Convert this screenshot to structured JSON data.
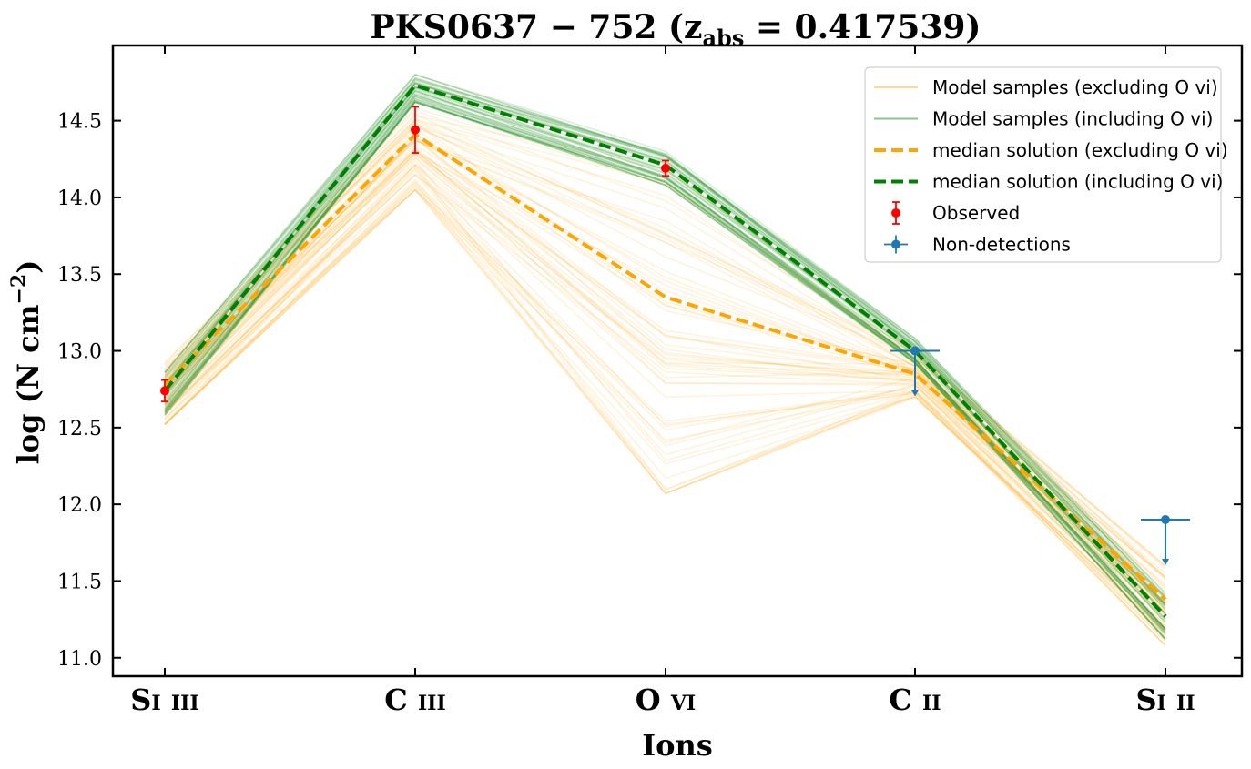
{
  "chart_data": {
    "type": "line",
    "title": "PKS0637 − 752 (z_abs = 0.417539)",
    "title_main": "PKS0637 − 752 (z",
    "title_sub": "abs",
    "title_tail": " = 0.417539)",
    "xlabel": "Ions",
    "ylabel": "log (N cm⁻²)",
    "ylabel_main": "log (N cm",
    "ylabel_sup": "−2",
    "ylabel_tail": ")",
    "categories": [
      "Si iii",
      "C iii",
      "O vi",
      "C ii",
      "Si ii"
    ],
    "ylim": [
      10.88,
      14.99
    ],
    "yticks": [
      11.0,
      11.5,
      12.0,
      12.5,
      13.0,
      13.5,
      14.0,
      14.5
    ],
    "ytick_labels": [
      "11.0",
      "11.5",
      "12.0",
      "12.5",
      "13.0",
      "13.5",
      "14.0",
      "14.5"
    ],
    "grid": false,
    "legend_placement": "top-right",
    "series": [
      {
        "name": "median solution (excluding O vi)",
        "color": "#ffa500",
        "style": "dashed",
        "values": [
          12.78,
          14.41,
          13.35,
          12.85,
          11.38
        ]
      },
      {
        "name": "median solution (including O vi)",
        "color": "#008000",
        "style": "dashed",
        "values": [
          12.74,
          14.73,
          14.21,
          13.0,
          11.27
        ]
      }
    ],
    "sample_bands": [
      {
        "name": "Model samples (excluding O vi)",
        "color": "#ffa500",
        "opacity": 0.13,
        "count": 60,
        "min": [
          12.52,
          14.05,
          12.07,
          12.7,
          11.08
        ],
        "max": [
          12.92,
          14.62,
          14.18,
          13.0,
          11.6
        ]
      },
      {
        "name": "Model samples (including O vi)",
        "color": "#008000",
        "opacity": 0.14,
        "count": 45,
        "min": [
          12.58,
          14.62,
          14.08,
          12.92,
          11.12
        ],
        "max": [
          12.86,
          14.8,
          14.3,
          13.08,
          11.42
        ]
      }
    ],
    "observed": {
      "name": "Observed",
      "color": "#ff0000",
      "points": [
        {
          "x": "Si iii",
          "y": 12.74,
          "err": 0.07
        },
        {
          "x": "C iii",
          "y": 14.44,
          "err": 0.15
        },
        {
          "x": "O vi",
          "y": 14.19,
          "err": 0.05
        }
      ]
    },
    "non_detections": {
      "name": "Non-detections",
      "color": "#1f77b4",
      "points": [
        {
          "x": "C ii",
          "y": 13.0
        },
        {
          "x": "Si ii",
          "y": 11.9
        }
      ]
    },
    "legend": [
      {
        "label": "Model samples (excluding O vi)",
        "color": "#ffa500",
        "kind": "thin"
      },
      {
        "label": "Model samples (including O vi)",
        "color": "#008000",
        "kind": "thin"
      },
      {
        "label": "median solution (excluding O vi)",
        "color": "#ffa500",
        "kind": "dashed"
      },
      {
        "label": "median solution (including O vi)",
        "color": "#008000",
        "kind": "dashed"
      },
      {
        "label": "Observed",
        "color": "#ff0000",
        "kind": "errorbar"
      },
      {
        "label": "Non-detections",
        "color": "#1f77b4",
        "kind": "errorbar-x"
      }
    ]
  }
}
